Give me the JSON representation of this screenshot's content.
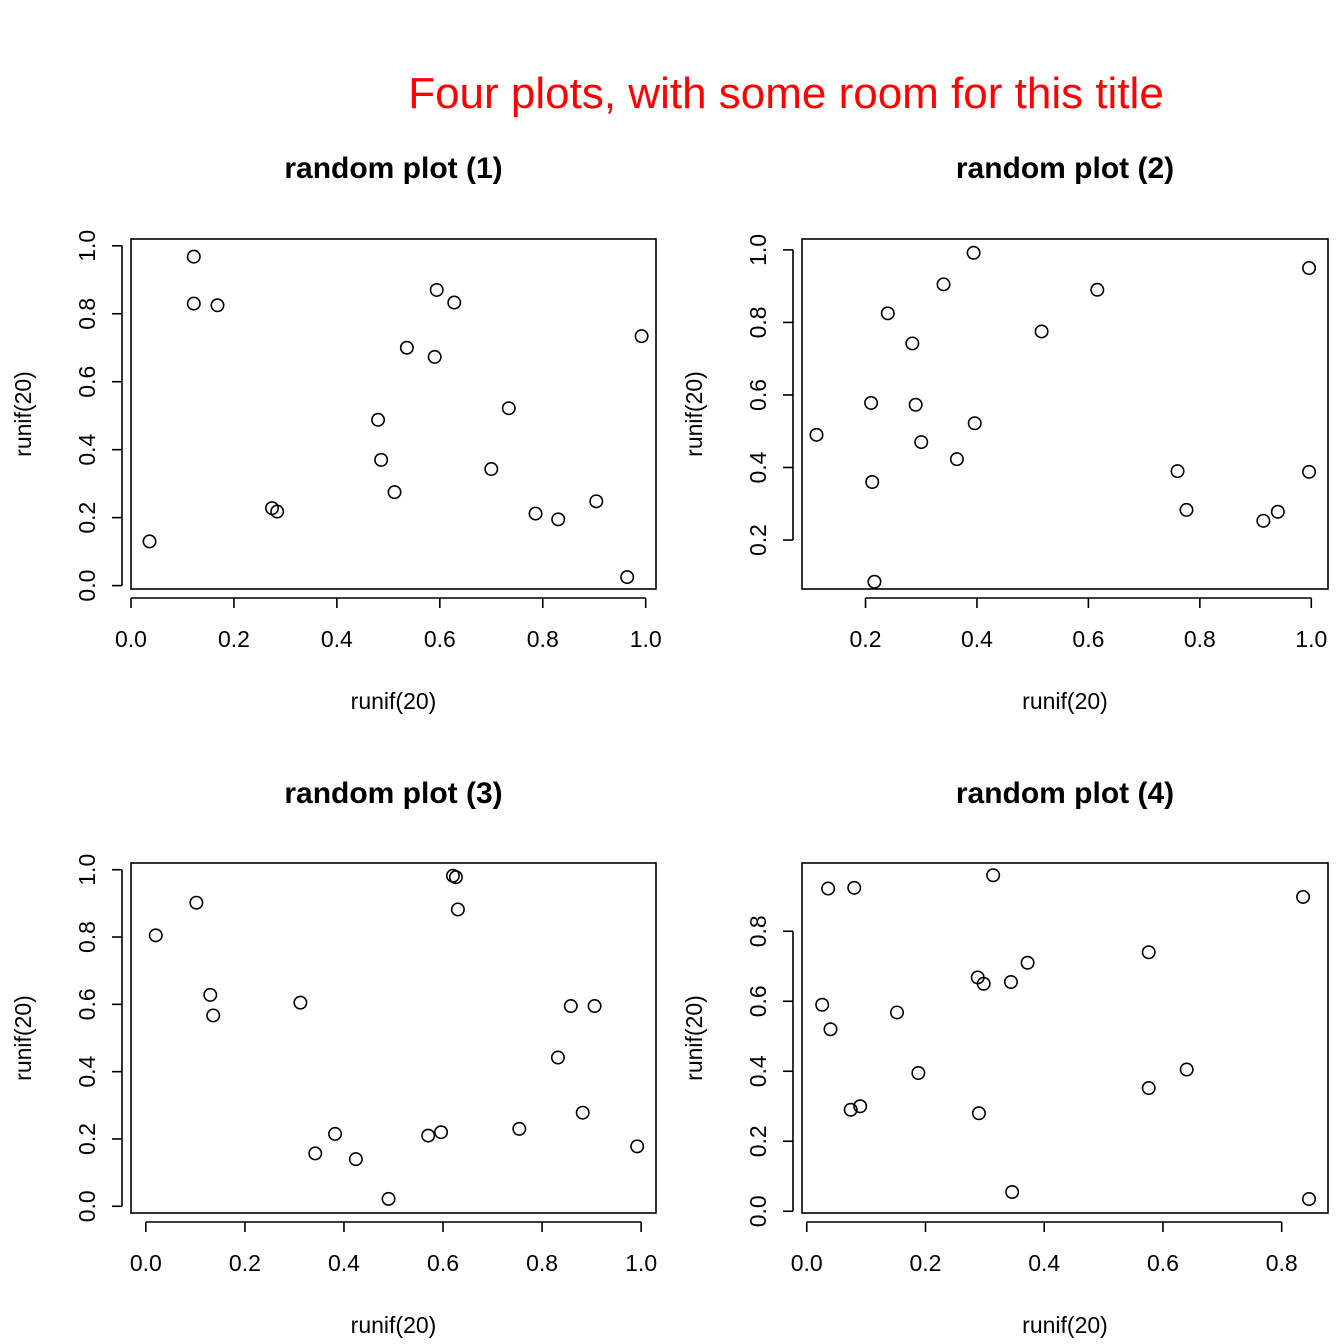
{
  "title": "Four plots, with some room for this title",
  "colors": {
    "title": "#ff0000",
    "ink": "#000000",
    "background": "#ffffff"
  },
  "chart_data": [
    {
      "type": "scatter",
      "title": "random plot (1)",
      "xlabel": "runif(20)",
      "ylabel": "runif(20)",
      "xlim": [
        0,
        1.02
      ],
      "ylim": [
        -0.01,
        1.02
      ],
      "xticks": [
        "0.0",
        "0.2",
        "0.4",
        "0.6",
        "0.8",
        "1.0"
      ],
      "yticks": [
        "0.0",
        "0.2",
        "0.4",
        "0.6",
        "0.8",
        "1.0"
      ],
      "xtick_values": [
        0,
        0.2,
        0.4,
        0.6,
        0.8,
        1.0
      ],
      "ytick_values": [
        0,
        0.2,
        0.4,
        0.6,
        0.8,
        1.0
      ],
      "x": [
        0.036,
        0.122,
        0.122,
        0.168,
        0.274,
        0.284,
        0.48,
        0.486,
        0.512,
        0.536,
        0.59,
        0.594,
        0.628,
        0.7,
        0.734,
        0.786,
        0.83,
        0.904,
        0.964,
        0.992
      ],
      "y": [
        0.13,
        0.968,
        0.83,
        0.825,
        0.228,
        0.218,
        0.488,
        0.37,
        0.275,
        0.7,
        0.673,
        0.87,
        0.833,
        0.343,
        0.522,
        0.212,
        0.195,
        0.248,
        0.025,
        0.734
      ]
    },
    {
      "type": "scatter",
      "title": "random plot (2)",
      "xlabel": "runif(20)",
      "ylabel": "runif(20)",
      "xlim": [
        0.086,
        1.03
      ],
      "ylim": [
        0.065,
        1.03
      ],
      "xticks": [
        "0.2",
        "0.4",
        "0.6",
        "0.8",
        "1.0"
      ],
      "yticks": [
        "0.2",
        "0.4",
        "0.6",
        "0.8",
        "1.0"
      ],
      "xtick_values": [
        0.2,
        0.4,
        0.6,
        0.8,
        1.0
      ],
      "ytick_values": [
        0.2,
        0.4,
        0.6,
        0.8,
        1.0
      ],
      "x": [
        0.112,
        0.21,
        0.212,
        0.216,
        0.24,
        0.284,
        0.29,
        0.3,
        0.34,
        0.364,
        0.394,
        0.396,
        0.516,
        0.616,
        0.76,
        0.776,
        0.914,
        0.94,
        0.996,
        0.996
      ],
      "y": [
        0.49,
        0.578,
        0.36,
        0.085,
        0.825,
        0.742,
        0.573,
        0.47,
        0.905,
        0.423,
        0.992,
        0.522,
        0.775,
        0.89,
        0.39,
        0.283,
        0.253,
        0.278,
        0.95,
        0.388
      ]
    },
    {
      "type": "scatter",
      "title": "random plot (3)",
      "xlabel": "runif(20)",
      "ylabel": "runif(20)",
      "xlim": [
        -0.03,
        1.03
      ],
      "ylim": [
        -0.02,
        1.02
      ],
      "xticks": [
        "0.0",
        "0.2",
        "0.4",
        "0.6",
        "0.8",
        "1.0"
      ],
      "yticks": [
        "0.0",
        "0.2",
        "0.4",
        "0.6",
        "0.8",
        "1.0"
      ],
      "xtick_values": [
        0,
        0.2,
        0.4,
        0.6,
        0.8,
        1.0
      ],
      "ytick_values": [
        0,
        0.2,
        0.4,
        0.6,
        0.8,
        1.0
      ],
      "x": [
        0.02,
        0.102,
        0.13,
        0.136,
        0.312,
        0.342,
        0.382,
        0.424,
        0.49,
        0.57,
        0.596,
        0.62,
        0.626,
        0.63,
        0.754,
        0.832,
        0.858,
        0.882,
        0.906,
        0.992
      ],
      "y": [
        0.805,
        0.902,
        0.628,
        0.567,
        0.605,
        0.157,
        0.215,
        0.14,
        0.022,
        0.21,
        0.22,
        0.982,
        0.978,
        0.882,
        0.23,
        0.442,
        0.595,
        0.278,
        0.595,
        0.178
      ]
    },
    {
      "type": "scatter",
      "title": "random plot (4)",
      "xlabel": "runif(20)",
      "ylabel": "runif(20)",
      "xlim": [
        -0.008,
        0.878
      ],
      "ylim": [
        -0.005,
        0.995
      ],
      "xticks": [
        "0.0",
        "0.2",
        "0.4",
        "0.6",
        "0.8"
      ],
      "yticks": [
        "0.0",
        "0.2",
        "0.4",
        "0.6",
        "0.8"
      ],
      "xtick_values": [
        0,
        0.2,
        0.4,
        0.6,
        0.8
      ],
      "ytick_values": [
        0,
        0.2,
        0.4,
        0.6,
        0.8
      ],
      "x": [
        0.026,
        0.036,
        0.04,
        0.074,
        0.08,
        0.09,
        0.152,
        0.188,
        0.288,
        0.29,
        0.298,
        0.314,
        0.344,
        0.346,
        0.372,
        0.576,
        0.576,
        0.64,
        0.836,
        0.846
      ],
      "y": [
        0.59,
        0.922,
        0.52,
        0.29,
        0.924,
        0.3,
        0.568,
        0.395,
        0.668,
        0.28,
        0.65,
        0.96,
        0.655,
        0.055,
        0.71,
        0.74,
        0.352,
        0.405,
        0.898,
        0.035
      ]
    }
  ]
}
